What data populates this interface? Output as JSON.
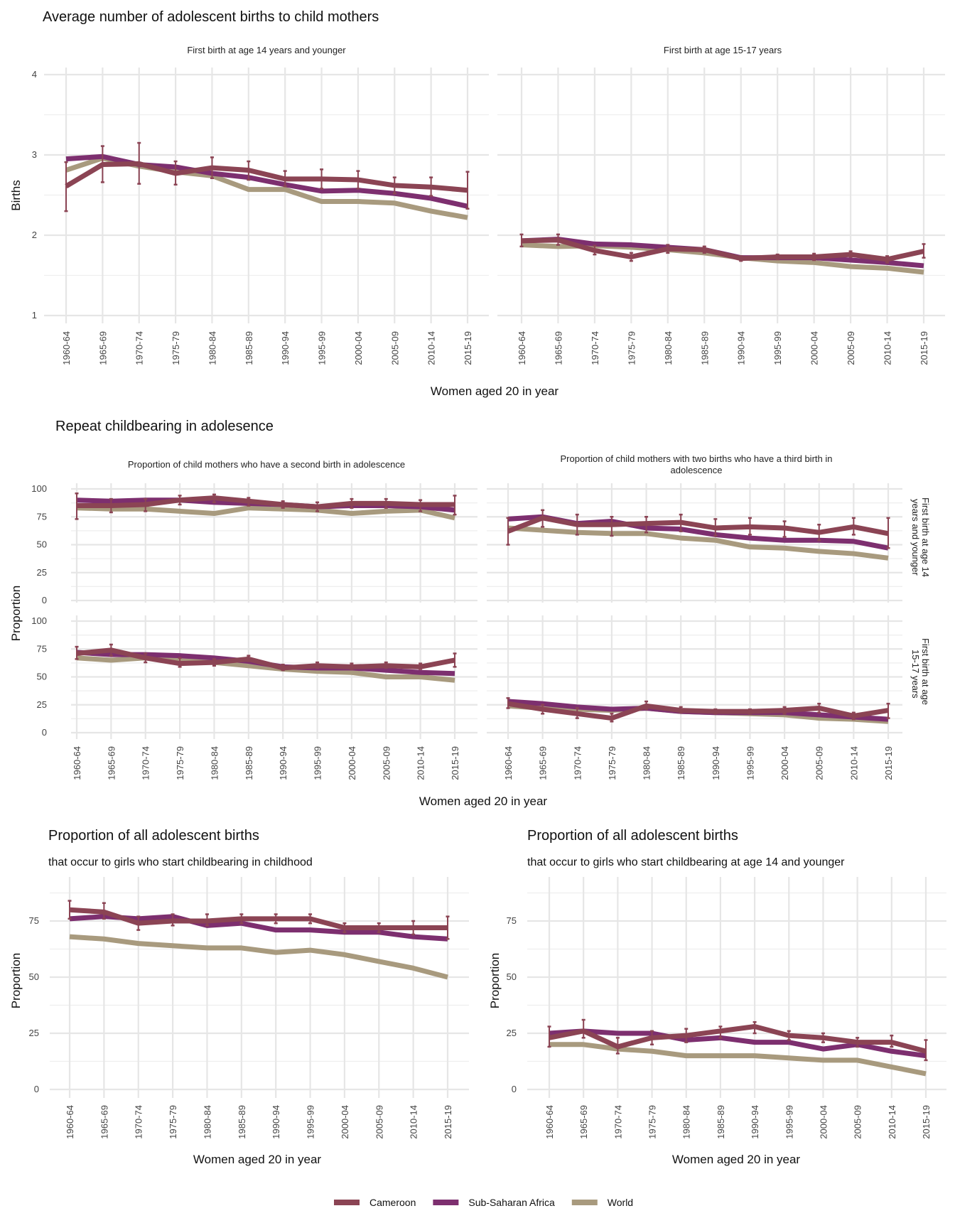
{
  "colors": {
    "Cameroon": "#8b4454",
    "Sub-Saharan Africa": "#7d2f6f",
    "World": "#a89a7e"
  },
  "legend": [
    "Cameroon",
    "Sub-Saharan Africa",
    "World"
  ],
  "chart_data": [
    {
      "id": "avg-births-14",
      "type": "line",
      "section_title": "Average number of adolescent births to child mothers",
      "strip": "First birth at age 14 years and younger",
      "xlabel": "Women aged 20 in year",
      "ylabel": "Births",
      "ylim": [
        1,
        4
      ],
      "yticks": [
        1,
        2,
        3,
        4
      ],
      "categories": [
        "1960-64",
        "1965-69",
        "1970-74",
        "1975-79",
        "1980-84",
        "1985-89",
        "1990-94",
        "1995-99",
        "2000-04",
        "2005-09",
        "2010-14",
        "2015-19"
      ],
      "series": [
        {
          "name": "World",
          "values": [
            2.81,
            2.96,
            2.86,
            2.79,
            2.74,
            2.57,
            2.57,
            2.42,
            2.42,
            2.4,
            2.3,
            2.22
          ]
        },
        {
          "name": "Sub-Saharan Africa",
          "values": [
            2.95,
            2.98,
            2.88,
            2.85,
            2.77,
            2.72,
            2.63,
            2.55,
            2.56,
            2.52,
            2.46,
            2.36
          ]
        },
        {
          "name": "Cameroon",
          "values": [
            2.61,
            2.88,
            2.89,
            2.77,
            2.84,
            2.81,
            2.7,
            2.7,
            2.69,
            2.62,
            2.6,
            2.56
          ],
          "err_low": [
            2.3,
            2.66,
            2.64,
            2.63,
            2.71,
            2.69,
            2.61,
            2.58,
            2.58,
            2.52,
            2.49,
            2.33
          ],
          "err_high": [
            2.91,
            3.11,
            3.15,
            2.92,
            2.97,
            2.92,
            2.8,
            2.82,
            2.8,
            2.72,
            2.72,
            2.79
          ]
        }
      ]
    },
    {
      "id": "avg-births-15-17",
      "type": "line",
      "strip": "First birth at age 15-17 years",
      "ylim": [
        1,
        4
      ],
      "categories": [
        "1960-64",
        "1965-69",
        "1970-74",
        "1975-79",
        "1980-84",
        "1985-89",
        "1990-94",
        "1995-99",
        "2000-04",
        "2005-09",
        "2010-14",
        "2015-19"
      ],
      "series": [
        {
          "name": "World",
          "values": [
            1.88,
            1.86,
            1.87,
            1.85,
            1.82,
            1.78,
            1.72,
            1.68,
            1.66,
            1.61,
            1.59,
            1.54
          ]
        },
        {
          "name": "Sub-Saharan Africa",
          "values": [
            1.93,
            1.95,
            1.89,
            1.88,
            1.85,
            1.82,
            1.72,
            1.72,
            1.72,
            1.69,
            1.66,
            1.62
          ]
        },
        {
          "name": "Cameroon",
          "values": [
            1.93,
            1.94,
            1.81,
            1.73,
            1.83,
            1.82,
            1.71,
            1.73,
            1.73,
            1.76,
            1.7,
            1.8
          ],
          "err_low": [
            1.86,
            1.88,
            1.76,
            1.68,
            1.78,
            1.78,
            1.68,
            1.7,
            1.69,
            1.73,
            1.66,
            1.72
          ],
          "err_high": [
            2.01,
            2.01,
            1.87,
            1.78,
            1.88,
            1.86,
            1.74,
            1.76,
            1.77,
            1.8,
            1.74,
            1.89
          ]
        }
      ]
    },
    {
      "id": "second-birth-14",
      "type": "line",
      "section_title": "Repeat childbearing in adolesence",
      "strip": "Proportion of child mothers who have a second birth in adolescence",
      "row_strip": "First birth at age 14 years and younger",
      "ylabel": "Proportion",
      "xlabel": "Women aged 20 in year",
      "ylim": [
        0,
        100
      ],
      "yticks": [
        0,
        25,
        50,
        75,
        100
      ],
      "categories": [
        "1960-64",
        "1965-69",
        "1970-74",
        "1975-79",
        "1980-84",
        "1985-89",
        "1990-94",
        "1995-99",
        "2000-04",
        "2005-09",
        "2010-14",
        "2015-19"
      ],
      "series": [
        {
          "name": "World",
          "values": [
            83,
            82,
            82,
            80,
            78,
            83,
            82,
            81,
            78,
            80,
            81,
            74
          ]
        },
        {
          "name": "Sub-Saharan Africa",
          "values": [
            90,
            89,
            90,
            90,
            88,
            87,
            86,
            84,
            85,
            85,
            84,
            81
          ]
        },
        {
          "name": "Cameroon",
          "values": [
            85,
            85,
            86,
            90,
            92,
            89,
            86,
            84,
            87,
            87,
            86,
            86
          ],
          "err_low": [
            73,
            79,
            80,
            86,
            88,
            85,
            83,
            80,
            83,
            83,
            80,
            77
          ],
          "err_high": [
            96,
            91,
            91,
            94,
            95,
            92,
            89,
            88,
            91,
            91,
            90,
            94
          ]
        }
      ]
    },
    {
      "id": "third-birth-14",
      "type": "line",
      "strip": "Proportion of child mothers with two births who have a third birth in adolescence",
      "row_strip": "First birth at age 14 years and younger",
      "ylim": [
        0,
        100
      ],
      "categories": [
        "1960-64",
        "1965-69",
        "1970-74",
        "1975-79",
        "1980-84",
        "1985-89",
        "1990-94",
        "1995-99",
        "2000-04",
        "2005-09",
        "2010-14",
        "2015-19"
      ],
      "series": [
        {
          "name": "World",
          "values": [
            65,
            63,
            61,
            60,
            60,
            56,
            54,
            48,
            47,
            44,
            42,
            38
          ]
        },
        {
          "name": "Sub-Saharan Africa",
          "values": [
            73,
            75,
            69,
            71,
            65,
            64,
            59,
            56,
            54,
            54,
            53,
            47
          ]
        },
        {
          "name": "Cameroon",
          "values": [
            62,
            74,
            68,
            68,
            69,
            70,
            65,
            66,
            65,
            61,
            66,
            60
          ],
          "err_low": [
            50,
            66,
            59,
            58,
            61,
            62,
            58,
            59,
            57,
            54,
            59,
            47
          ],
          "err_high": [
            74,
            81,
            77,
            75,
            75,
            77,
            73,
            74,
            71,
            68,
            74,
            74
          ]
        }
      ]
    },
    {
      "id": "second-birth-15-17",
      "type": "line",
      "row_strip": "First birth at age 15-17 years",
      "ylim": [
        0,
        100
      ],
      "categories": [
        "1960-64",
        "1965-69",
        "1970-74",
        "1975-79",
        "1980-84",
        "1985-89",
        "1990-94",
        "1995-99",
        "2000-04",
        "2005-09",
        "2010-14",
        "2015-19"
      ],
      "series": [
        {
          "name": "World",
          "values": [
            67,
            65,
            67,
            65,
            63,
            60,
            57,
            55,
            54,
            50,
            50,
            47
          ]
        },
        {
          "name": "Sub-Saharan Africa",
          "values": [
            72,
            70,
            70,
            69,
            67,
            64,
            59,
            58,
            58,
            56,
            54,
            53
          ]
        },
        {
          "name": "Cameroon",
          "values": [
            71,
            74,
            67,
            62,
            63,
            66,
            58,
            60,
            59,
            60,
            59,
            65
          ],
          "err_low": [
            66,
            69,
            63,
            59,
            60,
            64,
            56,
            58,
            57,
            58,
            57,
            59
          ],
          "err_high": [
            77,
            79,
            71,
            67,
            66,
            69,
            61,
            63,
            62,
            63,
            62,
            71
          ]
        }
      ]
    },
    {
      "id": "third-birth-15-17",
      "type": "line",
      "row_strip": "First birth at age 15-17 years",
      "ylim": [
        0,
        100
      ],
      "categories": [
        "1960-64",
        "1965-69",
        "1970-74",
        "1975-79",
        "1980-84",
        "1985-89",
        "1990-94",
        "1995-99",
        "2000-04",
        "2005-09",
        "2010-14",
        "2015-19"
      ],
      "series": [
        {
          "name": "World",
          "values": [
            24,
            22,
            21,
            20,
            22,
            19,
            18,
            17,
            16,
            13,
            12,
            10
          ]
        },
        {
          "name": "Sub-Saharan Africa",
          "values": [
            28,
            26,
            23,
            21,
            22,
            19,
            18,
            18,
            18,
            16,
            14,
            12
          ]
        },
        {
          "name": "Cameroon",
          "values": [
            26,
            21,
            17,
            13,
            24,
            20,
            19,
            19,
            20,
            22,
            15,
            20
          ],
          "err_low": [
            22,
            17,
            13,
            10,
            21,
            18,
            17,
            17,
            17,
            18,
            12,
            13
          ],
          "err_high": [
            31,
            25,
            22,
            17,
            28,
            23,
            21,
            21,
            23,
            26,
            18,
            26
          ]
        }
      ]
    },
    {
      "id": "prop-childhood",
      "type": "line",
      "section_title": "Proportion of all adolescent births",
      "subtitle": "that occur to girls who start childbearing in childhood",
      "xlabel": "Women aged 20 in year",
      "ylabel": "Proportion",
      "ylim": [
        0,
        87.5
      ],
      "yticks": [
        0,
        25,
        50,
        75
      ],
      "categories": [
        "1960-64",
        "1965-69",
        "1970-74",
        "1975-79",
        "1980-84",
        "1985-89",
        "1990-94",
        "1995-99",
        "2000-04",
        "2005-09",
        "2010-14",
        "2015-19"
      ],
      "series": [
        {
          "name": "World",
          "values": [
            68,
            67,
            65,
            64,
            63,
            63,
            61,
            62,
            60,
            57,
            54,
            50
          ]
        },
        {
          "name": "Sub-Saharan Africa",
          "values": [
            76,
            77,
            76,
            77,
            73,
            74,
            71,
            71,
            70,
            70,
            68,
            67
          ]
        },
        {
          "name": "Cameroon",
          "values": [
            80,
            79,
            74,
            75,
            75,
            76,
            76,
            76,
            72,
            72,
            72,
            72
          ],
          "err_low": [
            76,
            76,
            71,
            73,
            73,
            74,
            74,
            74,
            70,
            70,
            69,
            67
          ],
          "err_high": [
            84,
            83,
            77,
            78,
            78,
            78,
            78,
            78,
            74,
            74,
            75,
            77
          ]
        }
      ]
    },
    {
      "id": "prop-14",
      "type": "line",
      "section_title": "Proportion of all adolescent births",
      "subtitle": "that occur to girls who start childbearing at age 14 and younger",
      "xlabel": "Women aged 20 in year",
      "ylabel": "Proportion",
      "ylim": [
        0,
        87.5
      ],
      "yticks": [
        0,
        25,
        50,
        75
      ],
      "categories": [
        "1960-64",
        "1965-69",
        "1970-74",
        "1975-79",
        "1980-84",
        "1985-89",
        "1990-94",
        "1995-99",
        "2000-04",
        "2005-09",
        "2010-14",
        "2015-19"
      ],
      "series": [
        {
          "name": "World",
          "values": [
            20,
            20,
            18,
            17,
            15,
            15,
            15,
            14,
            13,
            13,
            10,
            7
          ]
        },
        {
          "name": "Sub-Saharan Africa",
          "values": [
            25,
            26,
            25,
            25,
            22,
            23,
            21,
            21,
            18,
            20,
            17,
            15
          ]
        },
        {
          "name": "Cameroon",
          "values": [
            23,
            26,
            19,
            23,
            24,
            26,
            28,
            24,
            23,
            21,
            21,
            17
          ],
          "err_low": [
            19,
            23,
            16,
            20,
            21,
            23,
            25,
            22,
            21,
            19,
            19,
            13
          ],
          "err_high": [
            28,
            31,
            23,
            26,
            27,
            28,
            30,
            26,
            25,
            23,
            24,
            22
          ]
        }
      ]
    }
  ]
}
